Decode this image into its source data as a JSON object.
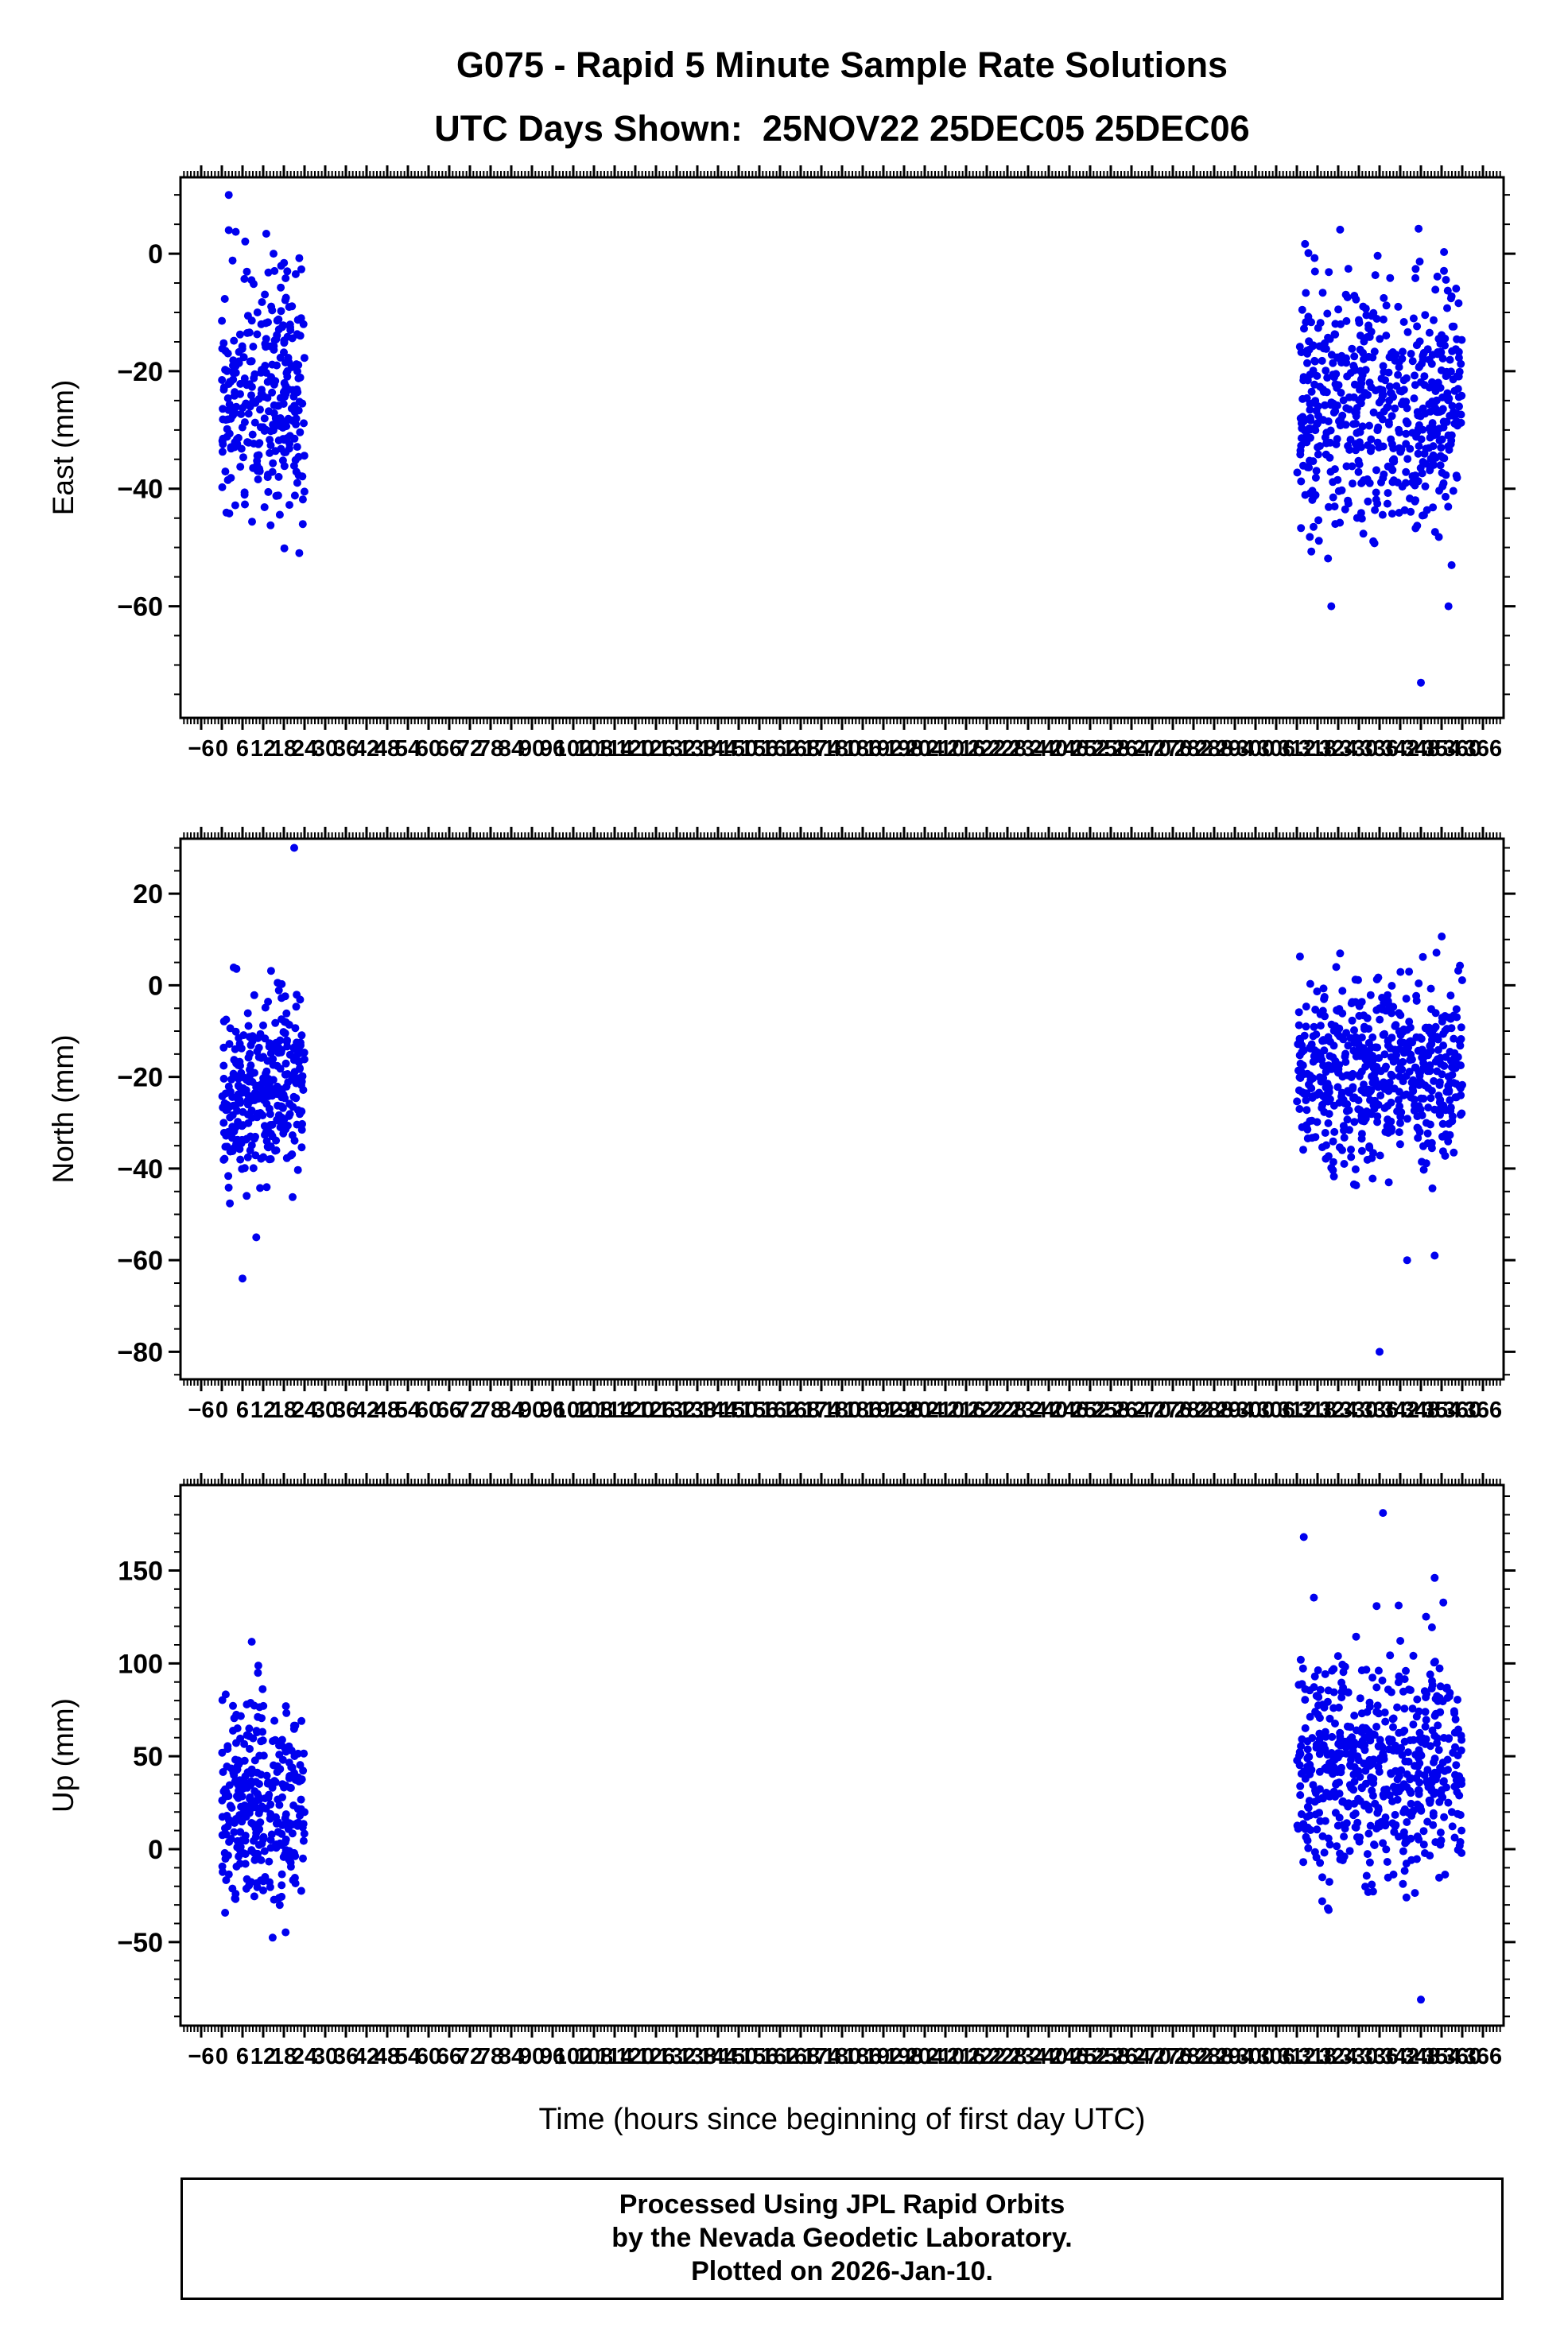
{
  "chart_data": {
    "type": "scatter",
    "title": "G075 - Rapid 5 Minute Sample Rate Solutions",
    "subtitle": "UTC Days Shown:  25NOV22 25DEC05 25DEC06",
    "xlabel": "Time (hours since beginning of first day UTC)",
    "marker_color": "#0000EE",
    "frame_color": "#000000",
    "xlim": [
      -12,
      372
    ],
    "x_major_tick_step": 6,
    "x_minor_tick_step": 1,
    "x_ticks": [
      -6,
      0,
      6,
      12,
      18,
      24,
      30,
      36,
      42,
      48,
      54,
      60,
      66,
      72,
      78,
      84,
      90,
      96,
      102,
      108,
      114,
      120,
      126,
      132,
      138,
      144,
      150,
      156,
      162,
      168,
      174,
      180,
      186,
      192,
      198,
      204,
      210,
      216,
      222,
      228,
      234,
      240,
      246,
      252,
      258,
      264,
      270,
      276,
      282,
      288,
      294,
      300,
      306,
      312,
      318,
      324,
      330,
      336,
      342,
      348,
      354,
      360,
      366
    ],
    "legend": "none",
    "grid": false,
    "panels": [
      {
        "name": "east",
        "ylabel": "East (mm)",
        "ylim": [
          -79,
          13
        ],
        "y_ticks": [
          0,
          -20,
          -40,
          -60
        ],
        "y_minor_tick_step": 5,
        "clusters": [
          {
            "x_range": [
              0,
              24
            ],
            "n": 310,
            "y_mean": -25,
            "y_std": 11,
            "y_clip": [
              -55,
              10
            ]
          },
          {
            "x_range": [
              312,
              360
            ],
            "n": 560,
            "y_mean": -26,
            "y_std": 10.5,
            "y_clip": [
              -63,
              5
            ]
          }
        ],
        "outliers": [
          [
            348,
            -73
          ],
          [
            322,
            -60
          ],
          [
            356,
            -60
          ],
          [
            2,
            10
          ],
          [
            2,
            4
          ],
          [
            15,
            0
          ],
          [
            19,
            -3
          ]
        ]
      },
      {
        "name": "north",
        "ylabel": "North (mm)",
        "ylim": [
          -86,
          32
        ],
        "y_ticks": [
          20,
          0,
          -20,
          -40,
          -60,
          -80
        ],
        "y_minor_tick_step": 5,
        "clusters": [
          {
            "x_range": [
              0,
              24
            ],
            "n": 310,
            "y_mean": -23,
            "y_std": 10,
            "y_clip": [
              -49,
              13
            ]
          },
          {
            "x_range": [
              312,
              360
            ],
            "n": 560,
            "y_mean": -19,
            "y_std": 10,
            "y_clip": [
              -46,
              22
            ]
          }
        ],
        "outliers": [
          [
            21,
            30
          ],
          [
            6,
            -64
          ],
          [
            10,
            -55
          ],
          [
            336,
            -80
          ],
          [
            344,
            -60
          ],
          [
            352,
            -59
          ]
        ]
      },
      {
        "name": "up",
        "ylabel": "Up (mm)",
        "ylim": [
          -95,
          196
        ],
        "y_ticks": [
          150,
          100,
          50,
          0,
          -50
        ],
        "y_minor_tick_step": 10,
        "clusters": [
          {
            "x_range": [
              0,
              24
            ],
            "n": 310,
            "y_mean": 25,
            "y_std": 27,
            "y_clip": [
              -58,
              112
            ]
          },
          {
            "x_range": [
              312,
              360
            ],
            "n": 560,
            "y_mean": 42,
            "y_std": 30,
            "y_clip": [
              -72,
              150
            ]
          }
        ],
        "outliers": [
          [
            337,
            181
          ],
          [
            314,
            168
          ],
          [
            352,
            146
          ],
          [
            348,
            -81
          ]
        ]
      }
    ]
  },
  "footer": {
    "line1": "Processed Using JPL Rapid Orbits",
    "line2": "by the Nevada Geodetic Laboratory.",
    "line3": "Plotted on 2026-Jan-10."
  }
}
